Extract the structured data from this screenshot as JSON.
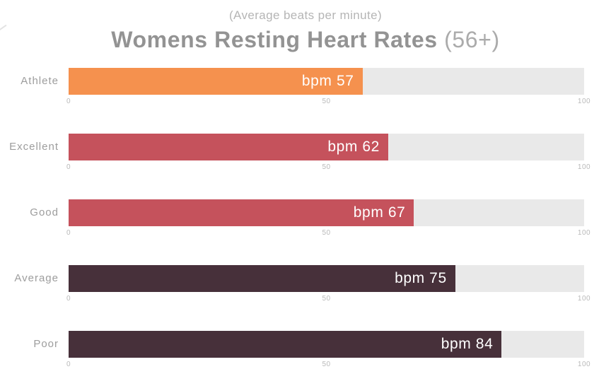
{
  "header": {
    "subtitle": "(Average beats per minute)",
    "title": "Womens Resting Heart Rates",
    "title_suffix": "(56+)"
  },
  "chart_data": {
    "type": "bar",
    "orientation": "horizontal",
    "title": "Womens Resting Heart Rates (56+)",
    "subtitle": "(Average beats per minute)",
    "categories": [
      "Athlete",
      "Excellent",
      "Good",
      "Average",
      "Poor"
    ],
    "values": [
      57,
      62,
      67,
      75,
      84
    ],
    "value_labels": [
      "bpm 57",
      "bpm 62",
      "bpm 67",
      "bpm 75",
      "bpm 84"
    ],
    "bar_colors": [
      "#F5914E",
      "#C5525C",
      "#C5525C",
      "#47303A",
      "#47303A"
    ],
    "track_color": "#E9E9E9",
    "xlim": [
      0,
      100
    ],
    "ticks": [
      "0",
      "50",
      "100"
    ],
    "value_text_color": "#FFFFFF",
    "grid": false,
    "legend": false
  }
}
